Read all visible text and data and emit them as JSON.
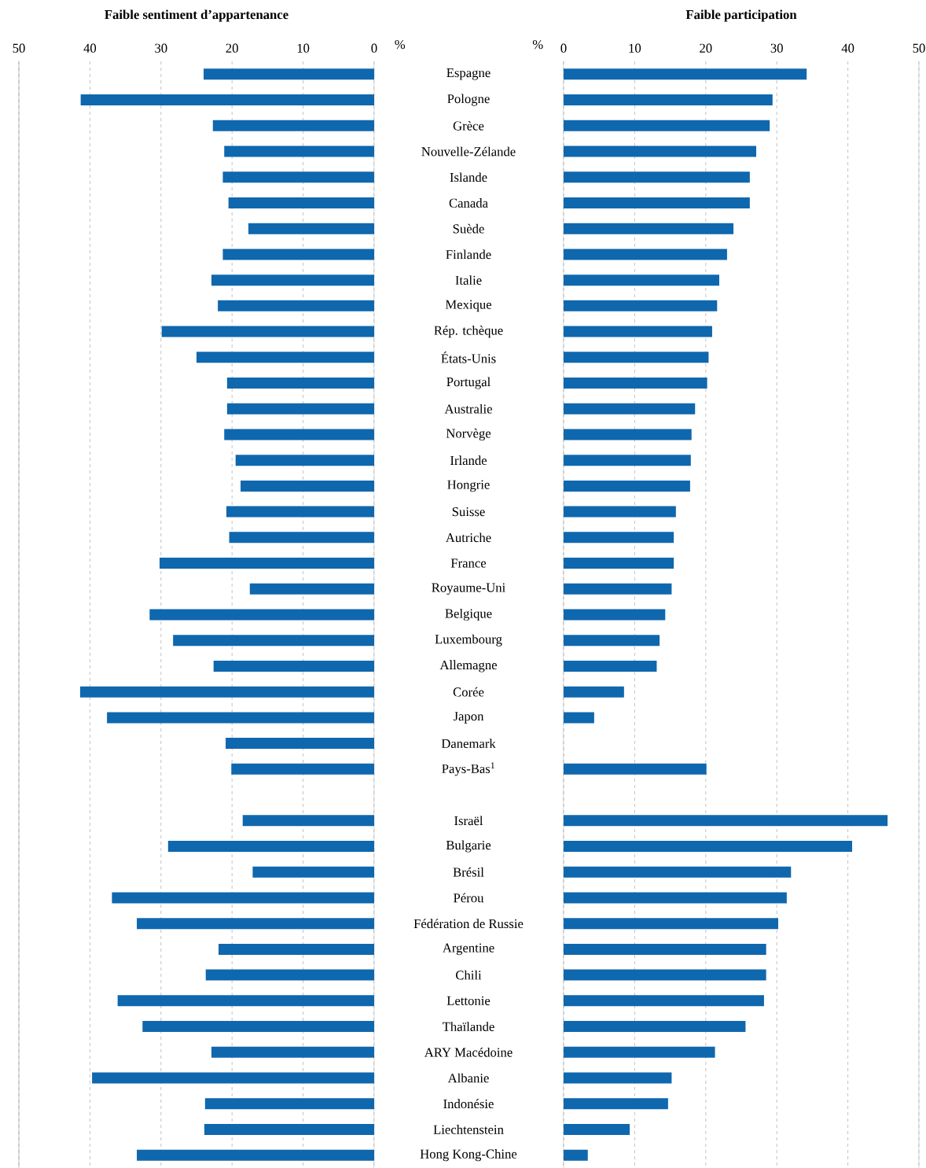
{
  "chart_data": [
    {
      "type": "bar",
      "orientation": "horizontal",
      "title": "**Faible sentiment d’appartenance**",
      "xlabel": "%",
      "categories": [
        "Espagne",
        "Pologne",
        "Grèce",
        "Nouvelle-Zélande",
        "Islande",
        "Canada",
        "Suède",
        "Finlande",
        "Italie",
        "Mexique",
        "Rép. tchèque",
        "États-Unis",
        "Portugal",
        "Australie",
        "Norvège",
        "Irlande",
        "Hongrie",
        "Suisse",
        "Autriche",
        "France",
        "Royaume-Uni",
        "Belgique",
        "Luxembourg",
        "Allemagne",
        "Corée",
        "Japon",
        "Danemark",
        "Pays-Bas$^{1}$",
        null,
        "Israël",
        "Bulgarie",
        "Brésil",
        "Pérou",
        "Fédération de Russie",
        "Argentine",
        "Chili",
        "Lettonie",
        "Thaïlande",
        "ARY Macédoine",
        "Albanie",
        "Indonésie",
        "Liechtenstein",
        "Hong Kong-Chine"
      ],
      "values": [
        24.0,
        41.3,
        22.7,
        21.1,
        21.3,
        20.5,
        17.7,
        21.3,
        22.9,
        22.0,
        29.9,
        25.0,
        20.7,
        20.7,
        21.1,
        19.5,
        18.8,
        20.8,
        20.4,
        30.2,
        17.5,
        31.6,
        28.3,
        22.6,
        41.4,
        37.6,
        20.9,
        20.1,
        null,
        18.5,
        29.0,
        17.1,
        36.9,
        33.4,
        21.9,
        23.7,
        36.1,
        32.6,
        22.9,
        39.7,
        23.8,
        23.9,
        33.4
      ],
      "color": "#0f67ae",
      "xlim": [
        50,
        0
      ],
      "xticks": [
        50,
        40,
        30,
        20,
        10,
        0
      ],
      "grid": "x"
    },
    {
      "type": "bar",
      "orientation": "horizontal",
      "title": "**Faible participation**",
      "xlabel": "%",
      "values": [
        34.2,
        29.4,
        29.0,
        27.1,
        26.2,
        26.2,
        23.9,
        23.0,
        21.9,
        21.6,
        20.9,
        20.4,
        20.2,
        18.5,
        18.0,
        17.9,
        17.8,
        15.8,
        15.5,
        15.5,
        15.2,
        14.3,
        13.5,
        13.1,
        8.5,
        4.3,
        null,
        20.1,
        null,
        45.6,
        40.6,
        32.0,
        31.4,
        30.2,
        28.5,
        28.5,
        28.2,
        25.6,
        21.3,
        15.2,
        14.7,
        9.3,
        3.4
      ],
      "color": "#0f67ae",
      "xlim": [
        0,
        50
      ],
      "xticks": [
        0,
        10,
        20,
        30,
        40,
        50
      ],
      "grid": "x",
      "tick_labels": "x"
    }
  ]
}
